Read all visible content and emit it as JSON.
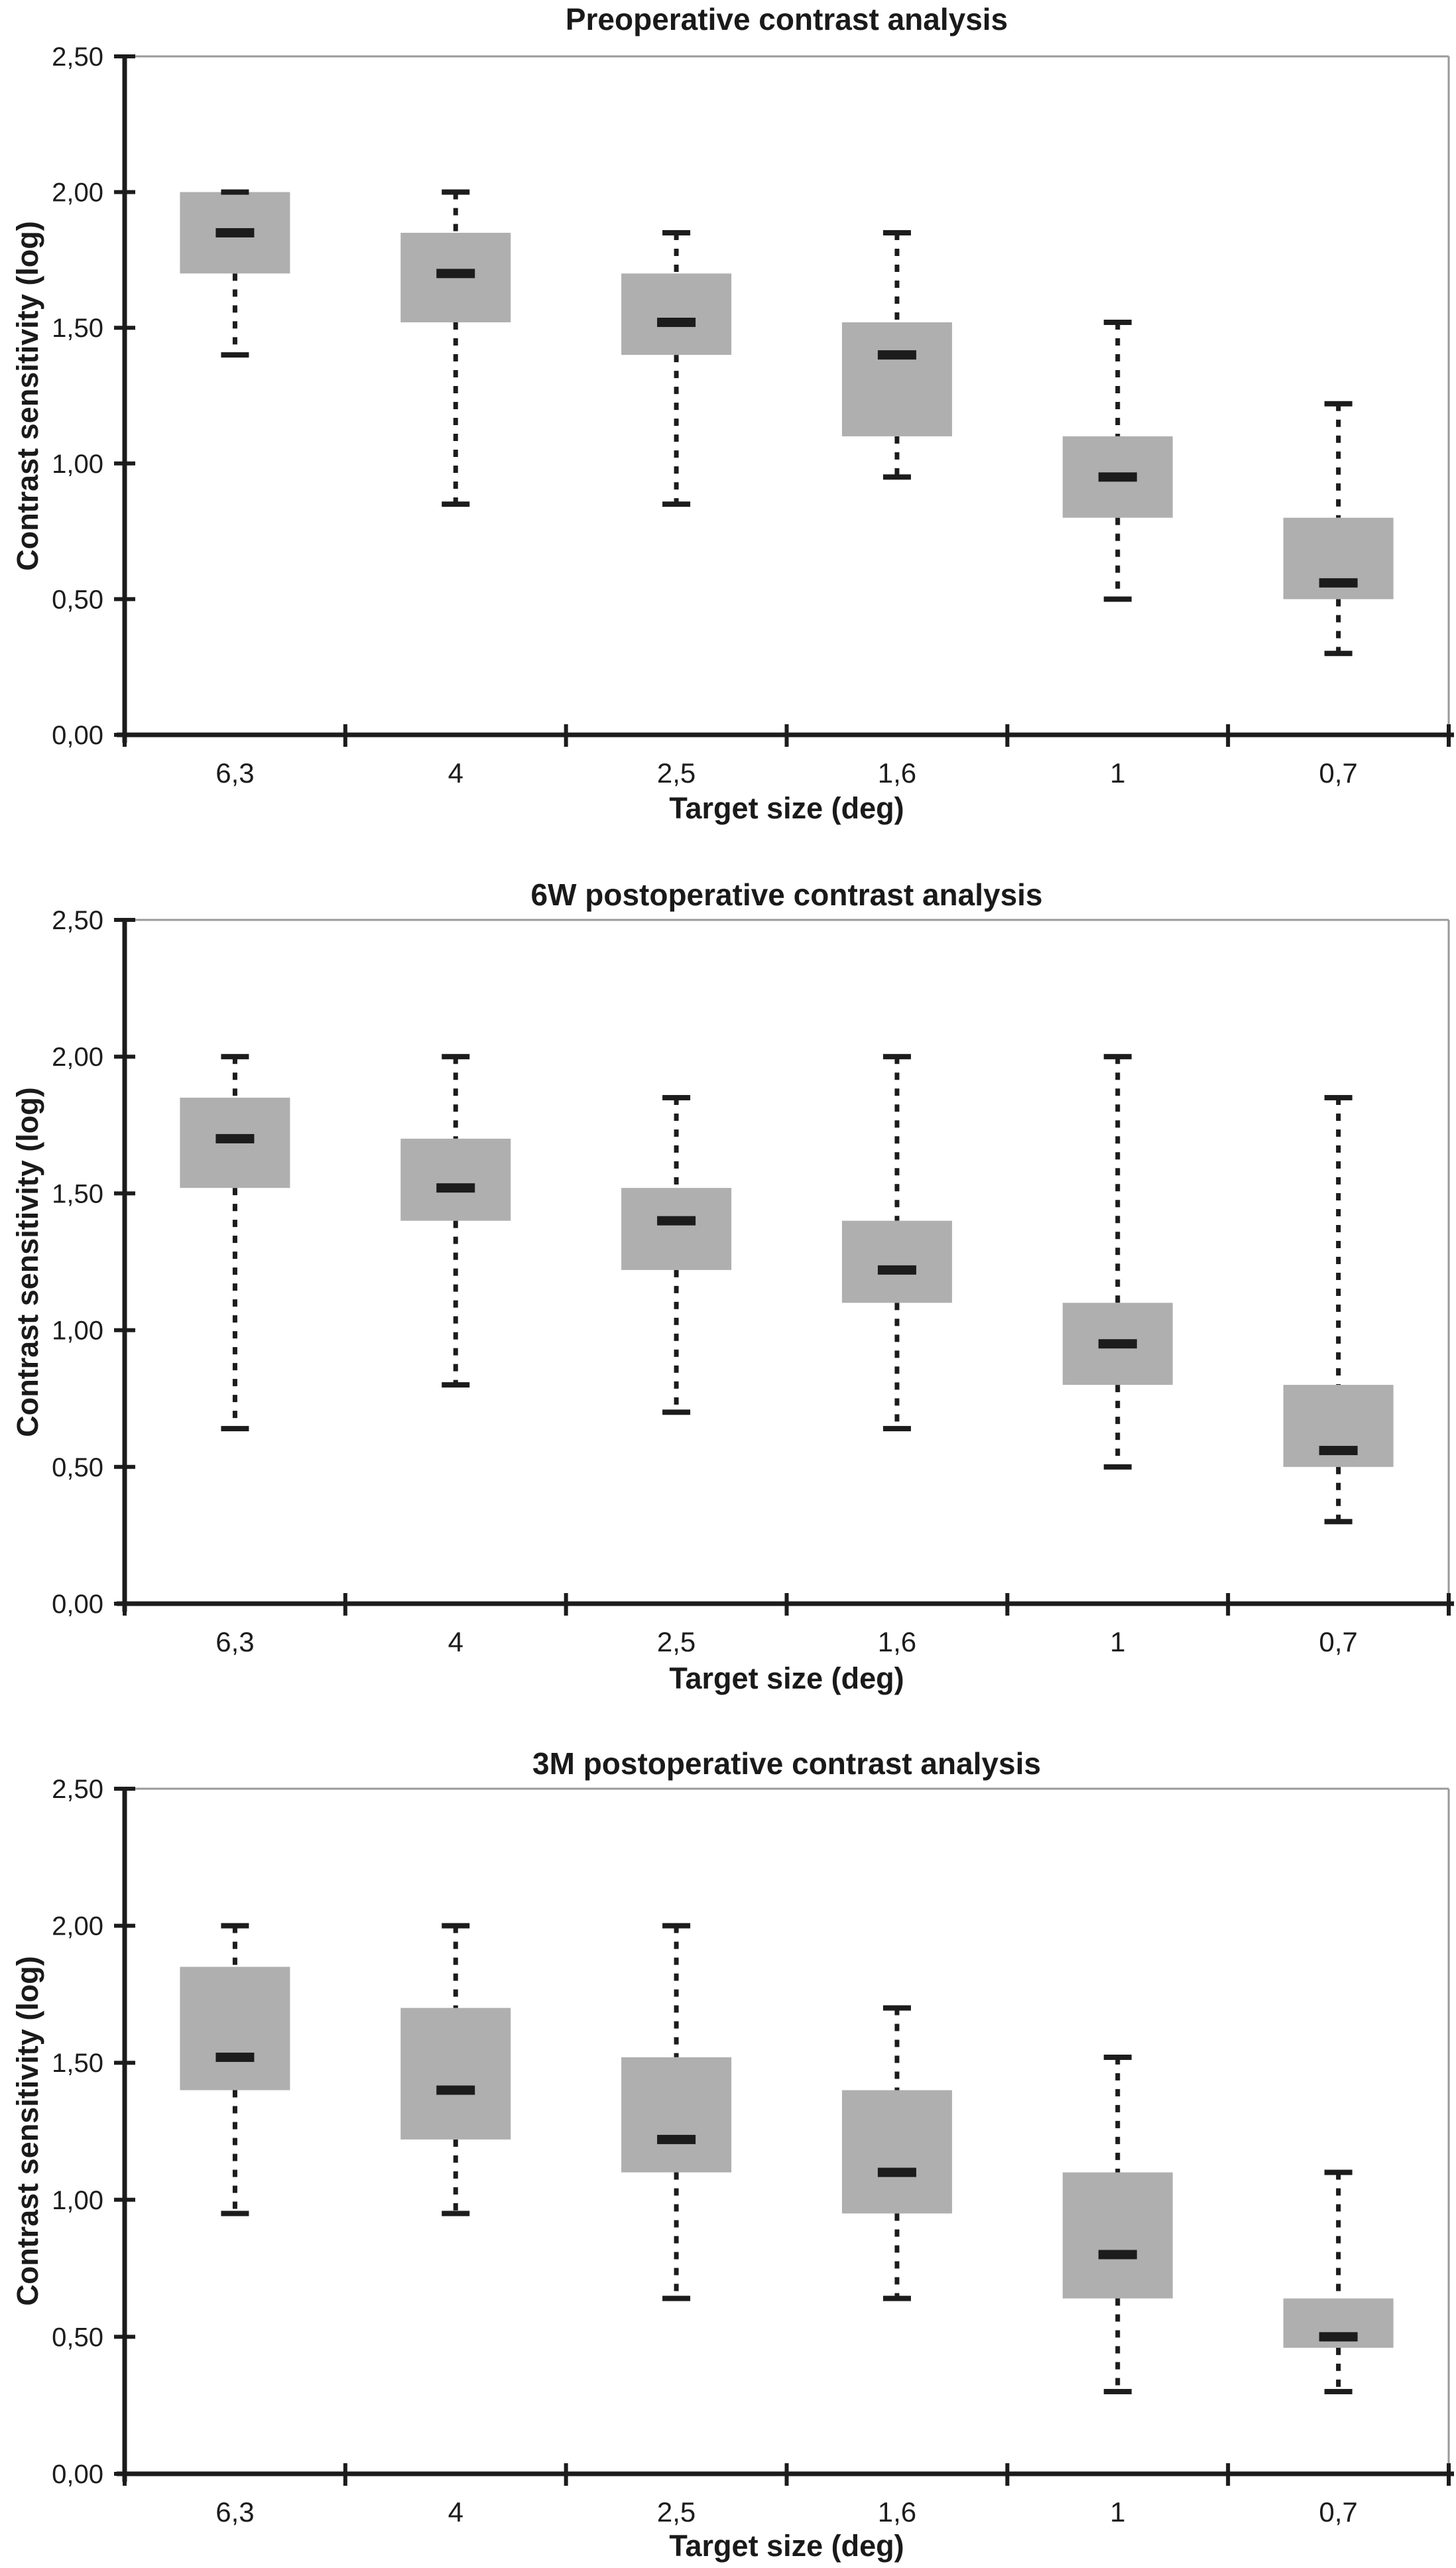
{
  "colors": {
    "background": "#FFFFFF",
    "ink": "#1C1C1C",
    "box_fill": "#AFAFAF",
    "frame": "#9A9A9A"
  },
  "chart_data": [
    {
      "type": "box",
      "title": "Preoperative contrast analysis",
      "xlabel": "Target size (deg)",
      "ylabel": "Contrast sensitivity (log)",
      "ylim": [
        0,
        2.5
      ],
      "grid": false,
      "y_ticks": [
        {
          "value": 0.0,
          "label": "0,00"
        },
        {
          "value": 0.5,
          "label": "0,50"
        },
        {
          "value": 1.0,
          "label": "1,00"
        },
        {
          "value": 1.5,
          "label": "1,50"
        },
        {
          "value": 2.0,
          "label": "2,00"
        },
        {
          "value": 2.5,
          "label": "2,50"
        }
      ],
      "categories": [
        "6,3",
        "4",
        "2,5",
        "1,6",
        "1",
        "0,7"
      ],
      "boxes": [
        {
          "category": "6,3",
          "whisker_low": 1.4,
          "q1": 1.7,
          "median": 1.85,
          "q3": 2.0,
          "whisker_high": 2.0
        },
        {
          "category": "4",
          "whisker_low": 0.85,
          "q1": 1.52,
          "median": 1.7,
          "q3": 1.85,
          "whisker_high": 2.0
        },
        {
          "category": "2,5",
          "whisker_low": 0.85,
          "q1": 1.4,
          "median": 1.52,
          "q3": 1.7,
          "whisker_high": 1.85
        },
        {
          "category": "1,6",
          "whisker_low": 0.95,
          "q1": 1.1,
          "median": 1.4,
          "q3": 1.52,
          "whisker_high": 1.85
        },
        {
          "category": "1",
          "whisker_low": 0.5,
          "q1": 0.8,
          "median": 0.95,
          "q3": 1.1,
          "whisker_high": 1.52
        },
        {
          "category": "0,7",
          "whisker_low": 0.3,
          "q1": 0.5,
          "median": 0.56,
          "q3": 0.8,
          "whisker_high": 1.22
        }
      ]
    },
    {
      "type": "box",
      "title": "6W postoperative contrast analysis",
      "xlabel": "Target size (deg)",
      "ylabel": "Contrast sensitivity (log)",
      "ylim": [
        0,
        2.5
      ],
      "grid": false,
      "y_ticks": [
        {
          "value": 0.0,
          "label": "0,00"
        },
        {
          "value": 0.5,
          "label": "0,50"
        },
        {
          "value": 1.0,
          "label": "1,00"
        },
        {
          "value": 1.5,
          "label": "1,50"
        },
        {
          "value": 2.0,
          "label": "2,00"
        },
        {
          "value": 2.5,
          "label": "2,50"
        }
      ],
      "categories": [
        "6,3",
        "4",
        "2,5",
        "1,6",
        "1",
        "0,7"
      ],
      "boxes": [
        {
          "category": "6,3",
          "whisker_low": 0.64,
          "q1": 1.52,
          "median": 1.7,
          "q3": 1.85,
          "whisker_high": 2.0
        },
        {
          "category": "4",
          "whisker_low": 0.8,
          "q1": 1.4,
          "median": 1.52,
          "q3": 1.7,
          "whisker_high": 2.0
        },
        {
          "category": "2,5",
          "whisker_low": 0.7,
          "q1": 1.22,
          "median": 1.4,
          "q3": 1.52,
          "whisker_high": 1.85
        },
        {
          "category": "1,6",
          "whisker_low": 0.64,
          "q1": 1.1,
          "median": 1.22,
          "q3": 1.4,
          "whisker_high": 2.0
        },
        {
          "category": "1",
          "whisker_low": 0.5,
          "q1": 0.8,
          "median": 0.95,
          "q3": 1.1,
          "whisker_high": 2.0
        },
        {
          "category": "0,7",
          "whisker_low": 0.3,
          "q1": 0.5,
          "median": 0.56,
          "q3": 0.8,
          "whisker_high": 1.85
        }
      ]
    },
    {
      "type": "box",
      "title": "3M postoperative contrast analysis",
      "xlabel": "Target size (deg)",
      "ylabel": "Contrast sensitivity (log)",
      "ylim": [
        0,
        2.5
      ],
      "grid": false,
      "y_ticks": [
        {
          "value": 0.0,
          "label": "0,00"
        },
        {
          "value": 0.5,
          "label": "0,50"
        },
        {
          "value": 1.0,
          "label": "1,00"
        },
        {
          "value": 1.5,
          "label": "1,50"
        },
        {
          "value": 2.0,
          "label": "2,00"
        },
        {
          "value": 2.5,
          "label": "2,50"
        }
      ],
      "categories": [
        "6,3",
        "4",
        "2,5",
        "1,6",
        "1",
        "0,7"
      ],
      "boxes": [
        {
          "category": "6,3",
          "whisker_low": 0.95,
          "q1": 1.4,
          "median": 1.52,
          "q3": 1.85,
          "whisker_high": 2.0
        },
        {
          "category": "4",
          "whisker_low": 0.95,
          "q1": 1.22,
          "median": 1.4,
          "q3": 1.7,
          "whisker_high": 2.0
        },
        {
          "category": "2,5",
          "whisker_low": 0.64,
          "q1": 1.1,
          "median": 1.22,
          "q3": 1.52,
          "whisker_high": 2.0
        },
        {
          "category": "1,6",
          "whisker_low": 0.64,
          "q1": 0.95,
          "median": 1.1,
          "q3": 1.4,
          "whisker_high": 1.7
        },
        {
          "category": "1",
          "whisker_low": 0.3,
          "q1": 0.64,
          "median": 0.8,
          "q3": 1.1,
          "whisker_high": 1.52
        },
        {
          "category": "0,7",
          "whisker_low": 0.3,
          "q1": 0.46,
          "median": 0.5,
          "q3": 0.64,
          "whisker_high": 1.1
        }
      ]
    }
  ]
}
